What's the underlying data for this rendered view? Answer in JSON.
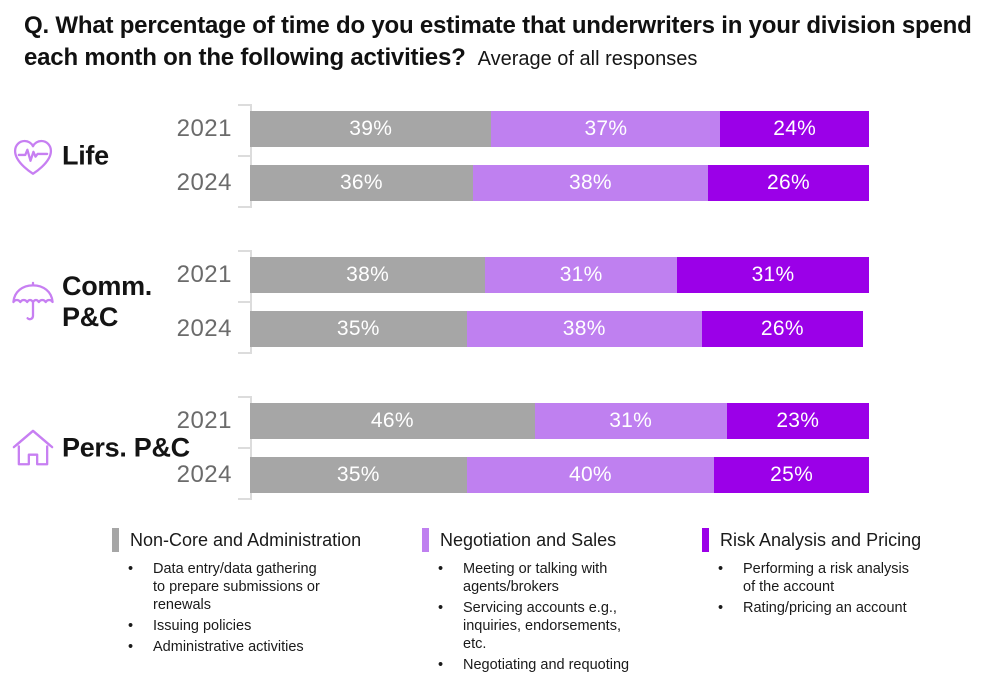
{
  "title": {
    "question": "Q. What percentage of time do you estimate that underwriters in your division spend each month on the following activities?",
    "subtitle": "Average of all responses"
  },
  "colors": {
    "non_core": "#a6a6a6",
    "negotiation": "#bf80f0",
    "risk": "#9b00e8",
    "icon_purple": "#c77ff2",
    "axis_gray": "#dcdcdc",
    "year_gray": "#6b6b6b",
    "bar_label": "#ffffff"
  },
  "chart_data": {
    "type": "bar",
    "variant": "stacked-horizontal",
    "unit": "%",
    "xlim": [
      0,
      100
    ],
    "grid": false,
    "series_names": [
      "Non-Core and Administration",
      "Negotiation and Sales",
      "Risk Analysis and Pricing"
    ],
    "series_colors": [
      "#a6a6a6",
      "#bf80f0",
      "#9b00e8"
    ],
    "groups": [
      {
        "label": "Life",
        "icon": "heart-pulse-icon",
        "rows": [
          {
            "year": "2021",
            "values": [
              39,
              37,
              24
            ]
          },
          {
            "year": "2024",
            "values": [
              36,
              38,
              26
            ]
          }
        ]
      },
      {
        "label": "Comm. P&C",
        "icon": "umbrella-icon",
        "rows": [
          {
            "year": "2021",
            "values": [
              38,
              31,
              31
            ]
          },
          {
            "year": "2024",
            "values": [
              35,
              38,
              26
            ]
          }
        ]
      },
      {
        "label": "Pers. P&C",
        "icon": "house-icon",
        "rows": [
          {
            "year": "2021",
            "values": [
              46,
              31,
              23
            ]
          },
          {
            "year": "2024",
            "values": [
              35,
              40,
              25
            ]
          }
        ]
      }
    ]
  },
  "legend": [
    {
      "title": "Non-Core and Administration",
      "color": "#a6a6a6",
      "bullets": [
        "Data entry/data gathering to prepare submissions or renewals",
        "Issuing policies",
        "Administrative activities"
      ]
    },
    {
      "title": "Negotiation and Sales",
      "color": "#bf80f0",
      "bullets": [
        "Meeting or talking with agents/brokers",
        "Servicing accounts e.g., inquiries, endorsements, etc.",
        "Negotiating and requoting"
      ]
    },
    {
      "title": "Risk Analysis and Pricing",
      "color": "#9b00e8",
      "bullets": [
        "Performing a risk analysis of the account",
        "Rating/pricing an account"
      ]
    }
  ]
}
